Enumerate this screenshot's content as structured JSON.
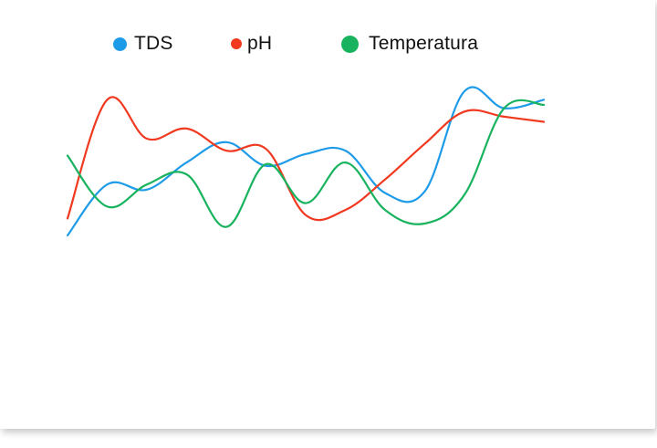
{
  "chart_data": {
    "type": "line",
    "title": "",
    "xlabel": "",
    "ylabel": "",
    "grid": false,
    "legend_position": "top",
    "x": [
      0,
      1,
      2,
      3,
      4,
      5,
      6,
      7,
      8,
      9,
      10,
      11,
      12
    ],
    "series": [
      {
        "name": "TDS",
        "color": "#1e9be8",
        "values": [
          1.5,
          4.5,
          4.2,
          5.8,
          7.0,
          5.6,
          6.3,
          6.5,
          4.0,
          4.1,
          10.0,
          9.0,
          9.5
        ]
      },
      {
        "name": "pH",
        "color": "#f0391f",
        "values": [
          2.5,
          9.5,
          7.2,
          7.8,
          6.5,
          6.6,
          2.7,
          3.0,
          4.8,
          6.9,
          8.8,
          8.5,
          8.2
        ]
      },
      {
        "name": "Temperatura",
        "color": "#19b35f",
        "values": [
          6.2,
          3.2,
          4.5,
          5.1,
          2.0,
          5.7,
          3.4,
          5.8,
          3.0,
          2.2,
          3.9,
          9.0,
          9.2
        ]
      }
    ]
  },
  "legend": [
    {
      "label": "TDS",
      "color": "#1e9be8"
    },
    {
      "label": "pH",
      "color": "#f0391f"
    },
    {
      "label": "Temperatura",
      "color": "#19b35f"
    }
  ]
}
